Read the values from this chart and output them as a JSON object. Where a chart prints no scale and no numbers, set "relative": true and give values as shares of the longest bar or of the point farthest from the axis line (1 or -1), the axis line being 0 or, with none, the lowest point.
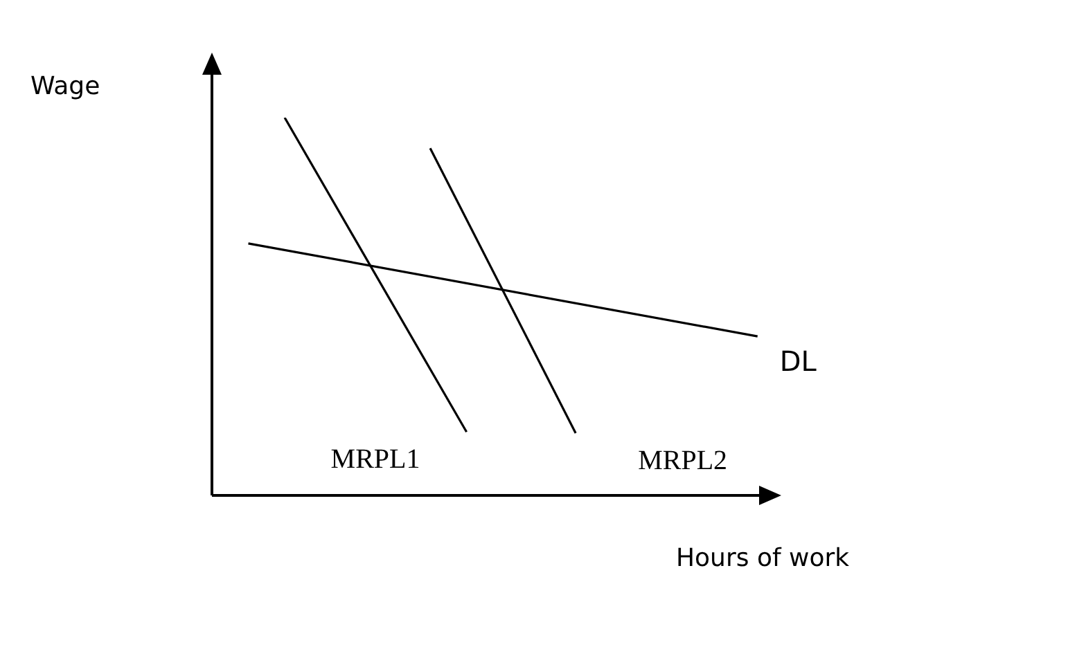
{
  "chart_data": {
    "type": "line",
    "relative": true,
    "xlabel": "Hours of work",
    "ylabel": "Wage",
    "marker": "none",
    "line_style": "solid",
    "categories": [
      null,
      null,
      null,
      null,
      null,
      null,
      null,
      null,
      null,
      null,
      null,
      null,
      null,
      null,
      null,
      null,
      null,
      null,
      null,
      null,
      null,
      null,
      null,
      null,
      null,
      null,
      null,
      null,
      null,
      null,
      null,
      null
    ],
    "series": [
      {
        "name": "MRPL1",
        "color": "#000000",
        "values": [
          null,
          null,
          null,
          null,
          1,
          null,
          null,
          null,
          null,
          null,
          null,
          null,
          null,
          null,
          0.168,
          null,
          null,
          null,
          null,
          null,
          null,
          null,
          null,
          null,
          null,
          null,
          null,
          null,
          null,
          null,
          null,
          null
        ]
      },
      {
        "name": "MRPL2",
        "color": "#000000",
        "values": [
          null,
          null,
          null,
          null,
          null,
          null,
          null,
          null,
          null,
          null,
          null,
          null,
          0.919,
          null,
          null,
          null,
          null,
          null,
          null,
          null,
          0.165,
          null,
          null,
          null,
          null,
          null,
          null,
          null,
          null,
          null,
          null,
          null
        ]
      },
      {
        "name": "DL",
        "color": "#000000",
        "values": [
          null,
          null,
          0.667,
          null,
          null,
          null,
          null,
          null,
          null,
          null,
          null,
          null,
          null,
          null,
          null,
          null,
          null,
          null,
          null,
          null,
          null,
          null,
          null,
          null,
          null,
          null,
          null,
          null,
          null,
          null,
          0.421,
          null
        ]
      }
    ]
  }
}
